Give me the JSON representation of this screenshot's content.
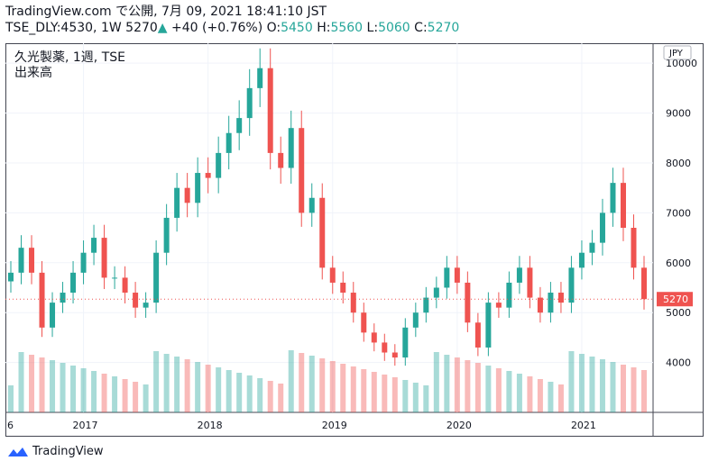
{
  "header": {
    "source_line": "TradingView.com で公開, 7月 09, 2021 18:41:10 JST",
    "ticker": "TSE_DLY:4530, 1W",
    "last_price": "5270",
    "change": "+40 (+0.76%)",
    "o_label": "O:",
    "o_value": "5450",
    "h_label": "H:",
    "h_value": "5560",
    "l_label": "L:",
    "l_value": "5060",
    "c_label": "C:",
    "c_value": "5270"
  },
  "legend": {
    "title": "久光製薬, 1週, TSE",
    "volume_label": "出来高"
  },
  "footer": {
    "brand": "TradingView"
  },
  "colors": {
    "up": "#26a69a",
    "down": "#ef5350",
    "grid": "#f0f3fa",
    "axis_text": "#131722",
    "price_tag": "#ef5350"
  },
  "chart_data": {
    "type": "candlestick",
    "currency": "JPY",
    "y_ticks": [
      4000,
      5000,
      6000,
      7000,
      8000,
      9000,
      10000
    ],
    "ylim": [
      3000,
      10400
    ],
    "x_ticks": [
      "6",
      "2017",
      "2018",
      "2019",
      "2020",
      "2021"
    ],
    "last_price_tag": "5270",
    "series": [
      {
        "name": "close",
        "points": [
          [
            "2016-06",
            5800
          ],
          [
            "2016-07",
            6300
          ],
          [
            "2016-08",
            5800
          ],
          [
            "2016-09",
            4700
          ],
          [
            "2016-10",
            5200
          ],
          [
            "2016-11",
            5400
          ],
          [
            "2016-12",
            5800
          ],
          [
            "2017-01",
            6200
          ],
          [
            "2017-02",
            6500
          ],
          [
            "2017-03",
            5700
          ],
          [
            "2017-04",
            5700
          ],
          [
            "2017-05",
            5400
          ],
          [
            "2017-06",
            5100
          ],
          [
            "2017-07",
            5200
          ],
          [
            "2017-08",
            6200
          ],
          [
            "2017-09",
            6900
          ],
          [
            "2017-10",
            7500
          ],
          [
            "2017-11",
            7200
          ],
          [
            "2017-12",
            7800
          ],
          [
            "2018-01",
            7700
          ],
          [
            "2018-02",
            8200
          ],
          [
            "2018-03",
            8600
          ],
          [
            "2018-04",
            8900
          ],
          [
            "2018-05",
            9500
          ],
          [
            "2018-06",
            9900
          ],
          [
            "2018-07",
            8200
          ],
          [
            "2018-08",
            7900
          ],
          [
            "2018-09",
            8700
          ],
          [
            "2018-10",
            7000
          ],
          [
            "2018-11",
            7300
          ],
          [
            "2018-12",
            5900
          ],
          [
            "2019-01",
            5600
          ],
          [
            "2019-02",
            5400
          ],
          [
            "2019-03",
            5000
          ],
          [
            "2019-04",
            4600
          ],
          [
            "2019-05",
            4400
          ],
          [
            "2019-06",
            4200
          ],
          [
            "2019-07",
            4100
          ],
          [
            "2019-08",
            4700
          ],
          [
            "2019-09",
            5000
          ],
          [
            "2019-10",
            5300
          ],
          [
            "2019-11",
            5500
          ],
          [
            "2019-12",
            5900
          ],
          [
            "2020-01",
            5600
          ],
          [
            "2020-02",
            4800
          ],
          [
            "2020-03",
            4300
          ],
          [
            "2020-04",
            5200
          ],
          [
            "2020-05",
            5100
          ],
          [
            "2020-06",
            5600
          ],
          [
            "2020-07",
            5900
          ],
          [
            "2020-08",
            5300
          ],
          [
            "2020-09",
            5000
          ],
          [
            "2020-10",
            5400
          ],
          [
            "2020-11",
            5200
          ],
          [
            "2020-12",
            5900
          ],
          [
            "2021-01",
            6200
          ],
          [
            "2021-02",
            6400
          ],
          [
            "2021-03",
            7000
          ],
          [
            "2021-04",
            7600
          ],
          [
            "2021-05",
            6700
          ],
          [
            "2021-06",
            5900
          ],
          [
            "2021-07",
            5270
          ]
        ]
      },
      {
        "name": "volume",
        "points": []
      }
    ]
  }
}
